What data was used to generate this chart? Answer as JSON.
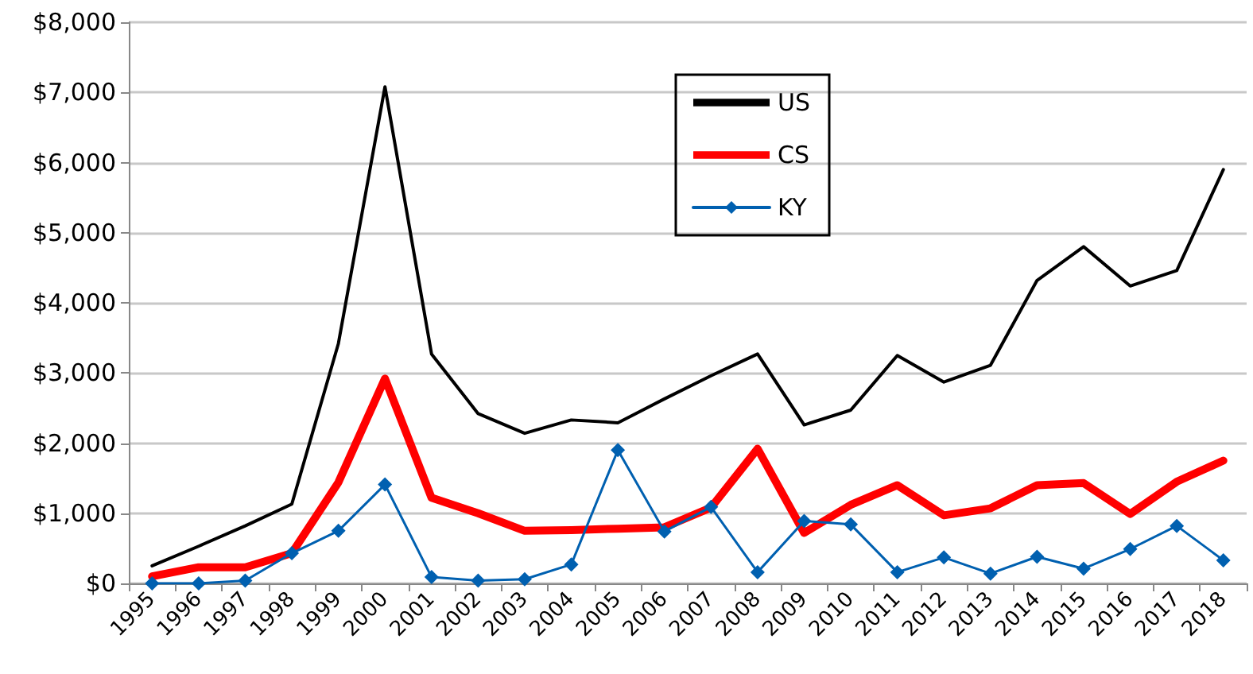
{
  "chart_data": {
    "type": "line",
    "categories": [
      "1995",
      "1996",
      "1997",
      "1998",
      "1999",
      "2000",
      "2001",
      "2002",
      "2003",
      "2004",
      "2005",
      "2006",
      "2007",
      "2008",
      "2009",
      "2010",
      "2011",
      "2012",
      "2013",
      "2014",
      "2015",
      "2016",
      "2017",
      "2018"
    ],
    "series": [
      {
        "name": "US",
        "color": "#000000",
        "marker": "none",
        "values": [
          250,
          530,
          820,
          1130,
          3420,
          7080,
          3270,
          2420,
          2140,
          2330,
          2290,
          2630,
          2960,
          3270,
          2260,
          2470,
          3250,
          2870,
          3110,
          4320,
          4800,
          4240,
          4460,
          5900
        ]
      },
      {
        "name": "CS",
        "color": "#ff0000",
        "marker": "none",
        "values": [
          100,
          230,
          230,
          430,
          1440,
          2920,
          1220,
          1000,
          750,
          760,
          780,
          800,
          1080,
          1920,
          720,
          1120,
          1400,
          970,
          1070,
          1400,
          1430,
          990,
          1450,
          1750
        ]
      },
      {
        "name": "KY",
        "color": "#0060b0",
        "marker": "diamond",
        "values": [
          0,
          0,
          40,
          430,
          750,
          1410,
          90,
          40,
          60,
          270,
          1900,
          740,
          1090,
          160,
          890,
          840,
          160,
          370,
          140,
          380,
          210,
          490,
          820,
          330
        ]
      }
    ],
    "ylim": [
      0,
      8000
    ],
    "yticks": [
      {
        "value": 0,
        "label": "$0"
      },
      {
        "value": 1000,
        "label": "$1,000"
      },
      {
        "value": 2000,
        "label": "$2,000"
      },
      {
        "value": 3000,
        "label": "$3,000"
      },
      {
        "value": 4000,
        "label": "$4,000"
      },
      {
        "value": 5000,
        "label": "$5,000"
      },
      {
        "value": 6000,
        "label": "$6,000"
      },
      {
        "value": 7000,
        "label": "$7,000"
      },
      {
        "value": 8000,
        "label": "$8,000"
      }
    ],
    "grid": "y",
    "legend": "top",
    "line_style": "solid"
  }
}
